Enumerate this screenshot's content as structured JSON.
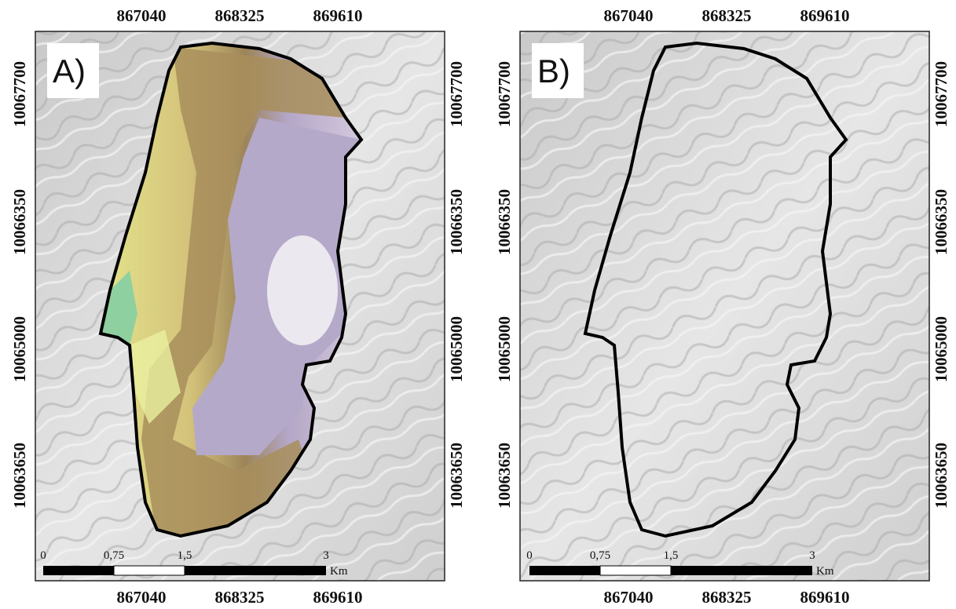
{
  "panels": [
    {
      "label": "A)",
      "x_ticks": [
        867040,
        868325,
        869610
      ],
      "y_ticks": [
        10067700,
        10066350,
        10065000,
        10063650
      ],
      "scale_bar": {
        "labels": [
          "0",
          "0,75",
          "1,5",
          "3"
        ],
        "unit": "Km"
      }
    },
    {
      "label": "B)",
      "x_ticks": [
        867040,
        868325,
        869610
      ],
      "y_ticks": [
        10067700,
        10066350,
        10065000,
        10063650
      ],
      "scale_bar": {
        "labels": [
          "0",
          "0,75",
          "1,5",
          "3"
        ],
        "unit": "Km"
      }
    }
  ]
}
